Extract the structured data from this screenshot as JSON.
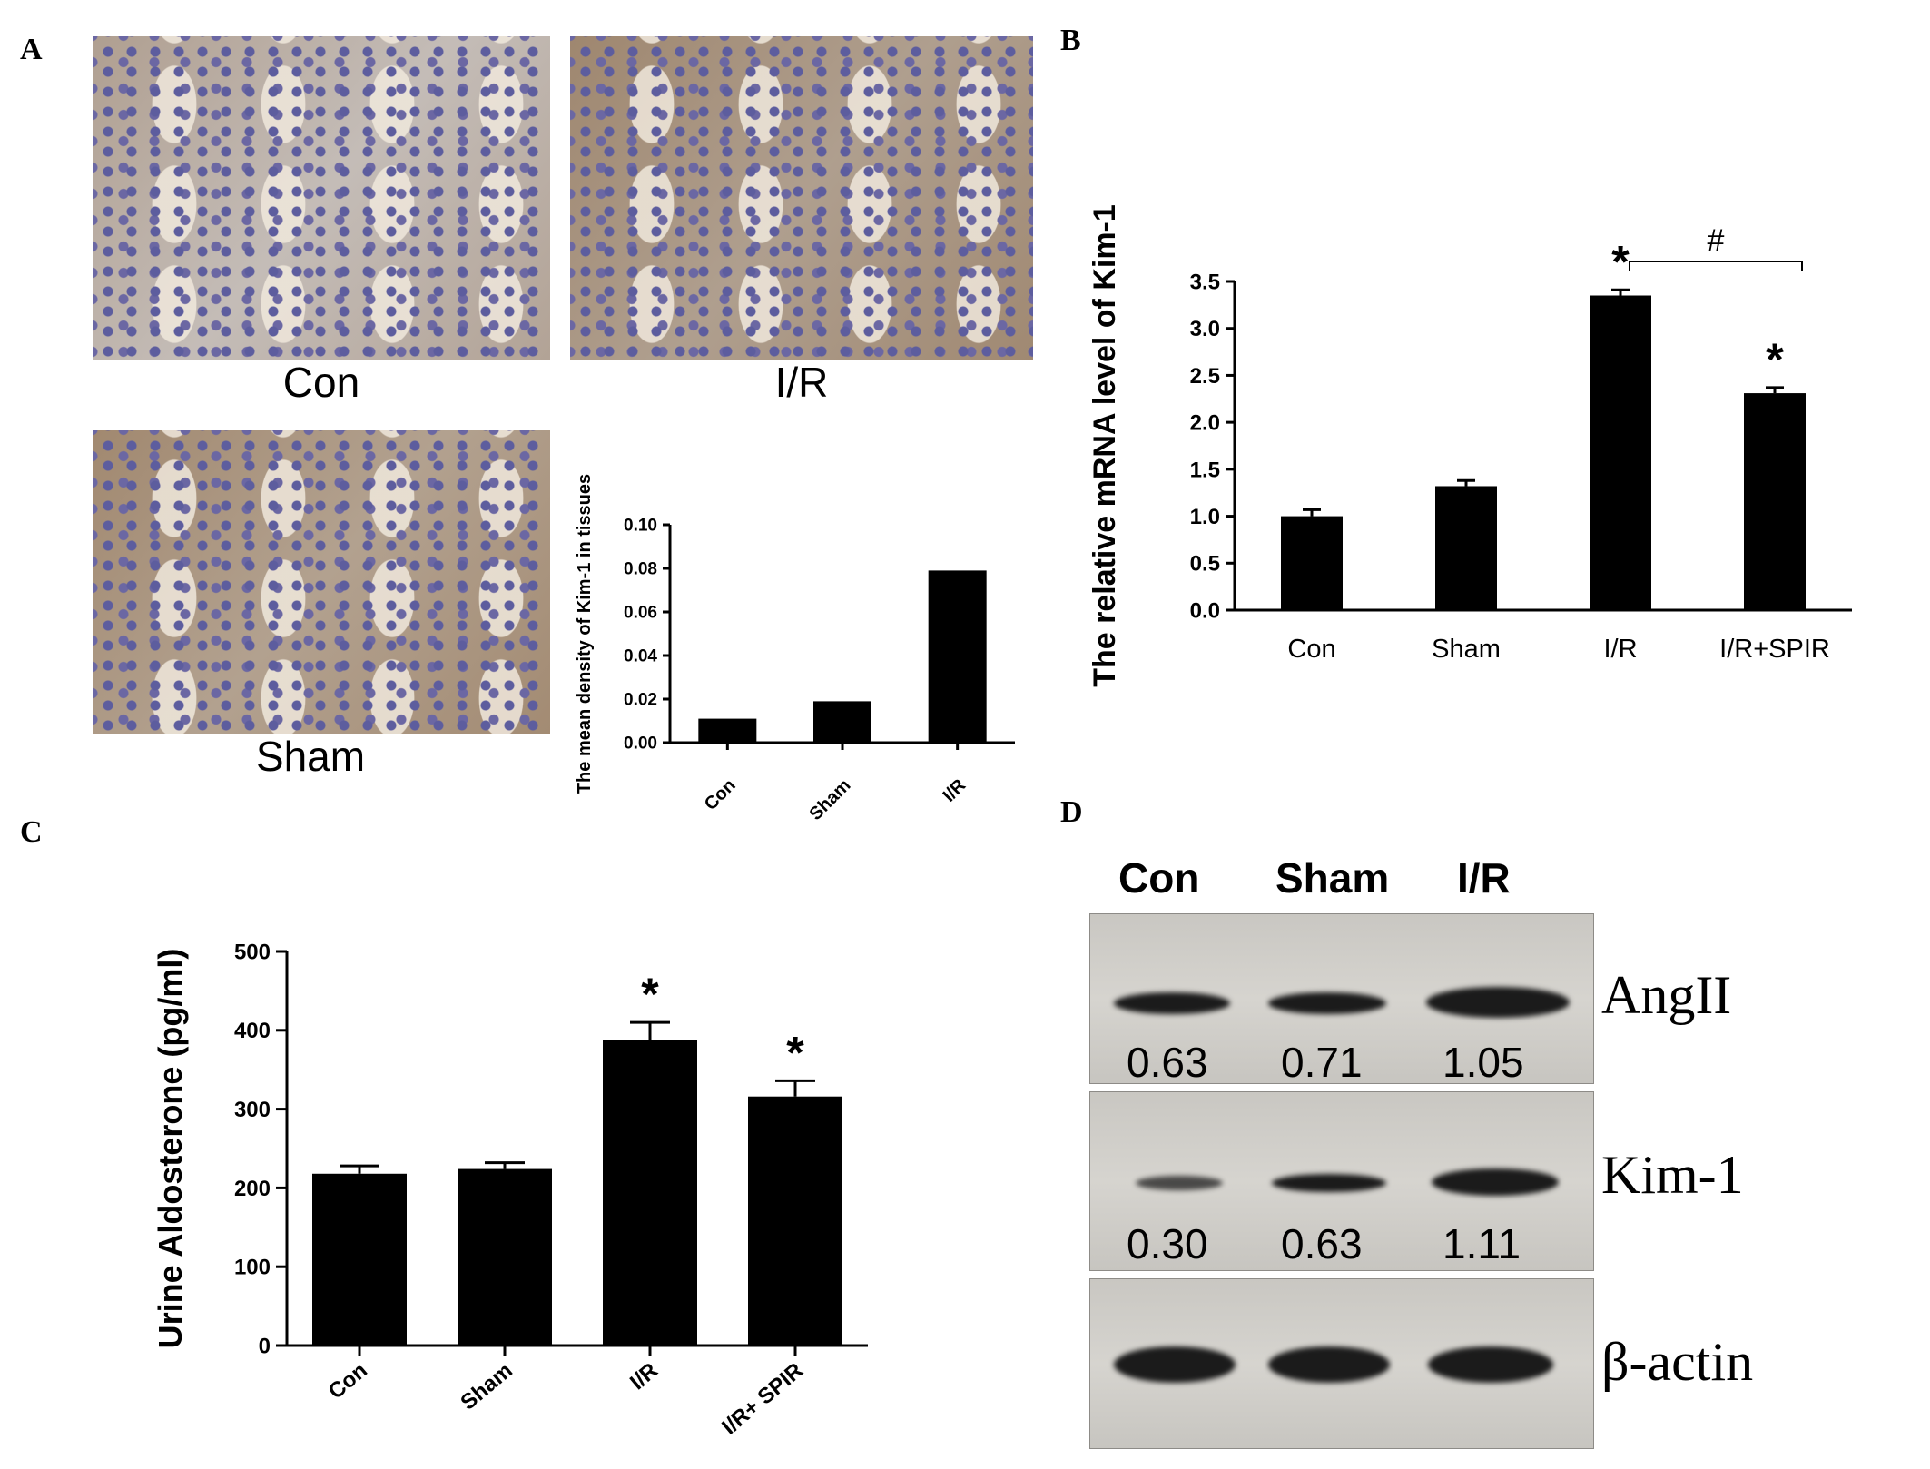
{
  "panels": {
    "a": "A",
    "b": "B",
    "c": "C",
    "d": "D"
  },
  "micrographs": [
    {
      "label": "Con"
    },
    {
      "label": "I/R"
    },
    {
      "label": "Sham"
    }
  ],
  "chart_data": [
    {
      "panel": "A",
      "type": "bar",
      "categories": [
        "Con",
        "Sham",
        "I/R"
      ],
      "values": [
        0.011,
        0.019,
        0.079
      ],
      "ylabel": "The mean density of Kim-1 in  tissues",
      "ylim": [
        0,
        0.1
      ],
      "yticks": [
        "0.00",
        "0.02",
        "0.04",
        "0.06",
        "0.08",
        "0.10"
      ],
      "bar_color": "#000000"
    },
    {
      "panel": "B",
      "type": "bar",
      "categories": [
        "Con",
        "Sham",
        "I/R",
        "I/R+SPIR"
      ],
      "values": [
        1.0,
        1.32,
        3.35,
        2.31
      ],
      "errors": [
        0.07,
        0.06,
        0.06,
        0.06
      ],
      "significance": [
        "",
        "",
        "*",
        "*"
      ],
      "bracket": {
        "from": "I/R",
        "to": "I/R+SPIR",
        "label": "#"
      },
      "ylabel": "The relative mRNA level of Kim-1",
      "ylim": [
        0,
        3.5
      ],
      "yticks": [
        "0.0",
        "0.5",
        "1.0",
        "1.5",
        "2.0",
        "2.5",
        "3.0",
        "3.5"
      ],
      "bar_color": "#000000"
    },
    {
      "panel": "C",
      "type": "bar",
      "categories": [
        "Con",
        "Sham",
        "I/R",
        "I/R+ SPIR"
      ],
      "values": [
        218,
        224,
        388,
        316
      ],
      "errors": [
        10,
        8,
        22,
        20
      ],
      "significance": [
        "",
        "",
        "*",
        "*"
      ],
      "ylabel": "Urine Aldosterone (pg/ml)",
      "ylim": [
        0,
        500
      ],
      "yticks": [
        "0",
        "100",
        "200",
        "300",
        "400",
        "500"
      ],
      "bar_color": "#000000"
    }
  ],
  "western_blot": {
    "lanes": [
      "Con",
      "Sham",
      "I/R"
    ],
    "rows": [
      {
        "name": "AngII",
        "values": [
          "0.63",
          "0.71",
          "1.05"
        ],
        "intensity": [
          0.63,
          0.71,
          1.05
        ]
      },
      {
        "name": "Kim-1",
        "values": [
          "0.30",
          "0.63",
          "1.11"
        ],
        "intensity": [
          0.3,
          0.63,
          1.11
        ]
      },
      {
        "name": "β-actin",
        "values": [],
        "intensity": [
          1,
          1,
          1
        ]
      }
    ]
  }
}
